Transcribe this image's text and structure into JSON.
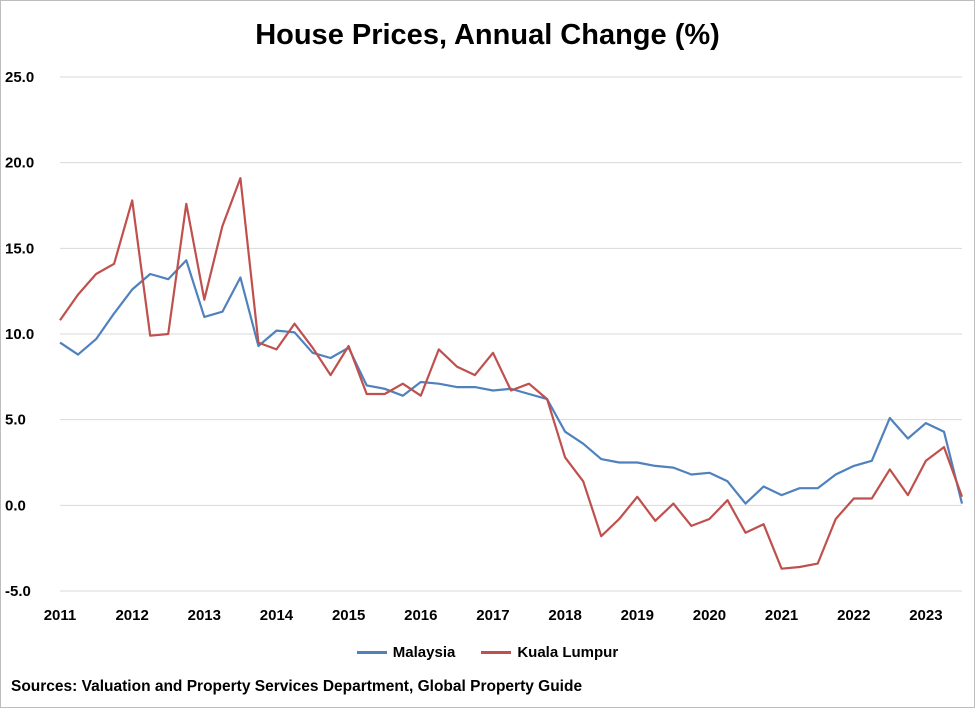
{
  "chart_data": {
    "type": "line",
    "title": "House Prices, Annual Change (%)",
    "ylim": [
      -5,
      25
    ],
    "yticks": [
      "25.0",
      "20.0",
      "15.0",
      "10.0",
      "5.0",
      "0.0",
      "-5.0"
    ],
    "ytick_values": [
      25,
      20,
      15,
      10,
      5,
      0,
      -5
    ],
    "xlabels": [
      "2011",
      "2012",
      "2013",
      "2014",
      "2015",
      "2016",
      "2017",
      "2018",
      "2019",
      "2020",
      "2021",
      "2022",
      "2023"
    ],
    "xlabel_values": [
      2011,
      2012,
      2013,
      2014,
      2015,
      2016,
      2017,
      2018,
      2019,
      2020,
      2021,
      2022,
      2023
    ],
    "x": [
      2011.0,
      2011.25,
      2011.5,
      2011.75,
      2012.0,
      2012.25,
      2012.5,
      2012.75,
      2013.0,
      2013.25,
      2013.5,
      2013.75,
      2014.0,
      2014.25,
      2014.5,
      2014.75,
      2015.0,
      2015.25,
      2015.5,
      2015.75,
      2016.0,
      2016.25,
      2016.5,
      2016.75,
      2017.0,
      2017.25,
      2017.5,
      2017.75,
      2018.0,
      2018.25,
      2018.5,
      2018.75,
      2019.0,
      2019.25,
      2019.5,
      2019.75,
      2020.0,
      2020.25,
      2020.5,
      2020.75,
      2021.0,
      2021.25,
      2021.5,
      2021.75,
      2022.0,
      2022.25,
      2022.5,
      2022.75,
      2023.0,
      2023.25,
      2023.5
    ],
    "series": [
      {
        "name": "Malaysia",
        "color": "#4f81bd",
        "values": [
          9.5,
          8.8,
          9.7,
          11.2,
          12.6,
          13.5,
          13.2,
          14.3,
          11.0,
          11.3,
          13.3,
          9.3,
          10.2,
          10.1,
          8.9,
          8.6,
          9.2,
          7.0,
          6.8,
          6.4,
          7.2,
          7.1,
          6.9,
          6.9,
          6.7,
          6.8,
          6.5,
          6.2,
          4.3,
          3.6,
          2.7,
          2.5,
          2.5,
          2.3,
          2.2,
          1.8,
          1.9,
          1.4,
          0.1,
          1.1,
          0.6,
          1.0,
          1.0,
          1.8,
          2.3,
          2.6,
          5.1,
          3.9,
          4.8,
          4.3,
          0.1
        ]
      },
      {
        "name": "Kuala Lumpur",
        "color": "#c0504d",
        "values": [
          10.8,
          12.3,
          13.5,
          14.1,
          17.8,
          9.9,
          10.0,
          17.6,
          12.0,
          16.3,
          19.1,
          9.5,
          9.1,
          10.6,
          9.2,
          7.6,
          9.3,
          6.5,
          6.5,
          7.1,
          6.4,
          9.1,
          8.1,
          7.6,
          8.9,
          6.7,
          7.1,
          6.2,
          2.8,
          1.4,
          -1.8,
          -0.8,
          0.5,
          -0.9,
          0.1,
          -1.2,
          -0.8,
          0.3,
          -1.6,
          -1.1,
          -3.7,
          -3.6,
          -3.4,
          -0.8,
          0.4,
          0.4,
          2.1,
          0.6,
          2.6,
          3.4,
          0.5
        ]
      }
    ],
    "grid": true,
    "legend_position": "bottom"
  },
  "source_text": "Sources: Valuation and Property Services Department, Global Property Guide"
}
